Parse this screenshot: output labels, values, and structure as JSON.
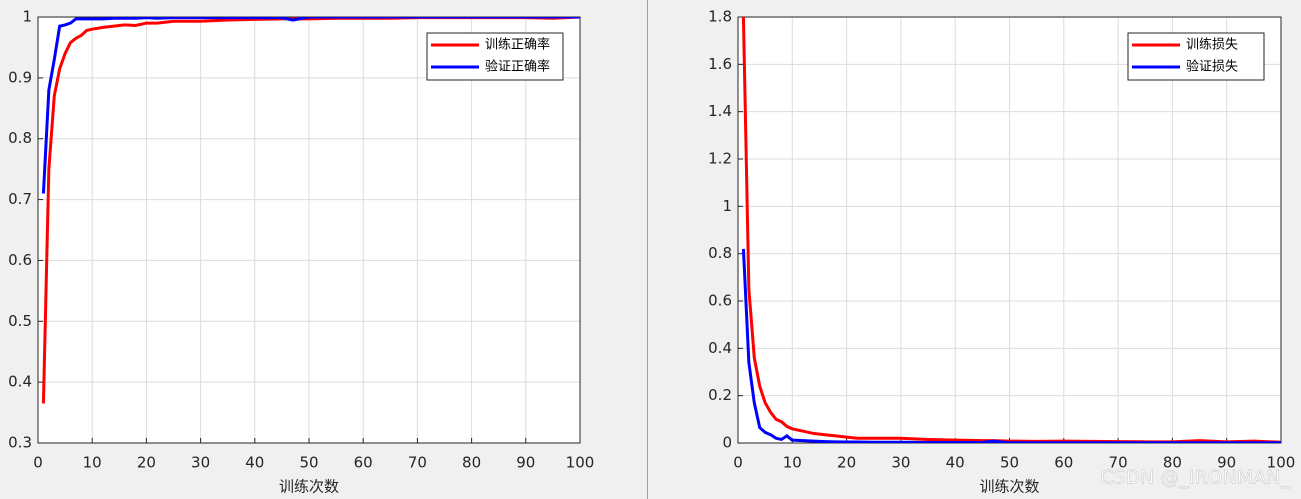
{
  "chart_data": [
    {
      "type": "line",
      "xlabel": "训练次数",
      "x": [
        1,
        2,
        3,
        4,
        5,
        6,
        7,
        8,
        9,
        10,
        12,
        14,
        16,
        18,
        20,
        22,
        25,
        30,
        35,
        40,
        45,
        47,
        50,
        55,
        60,
        65,
        70,
        75,
        80,
        85,
        90,
        95,
        100
      ],
      "series": [
        {
          "name": "训练正确率",
          "color": "#ff0000",
          "values": [
            0.365,
            0.75,
            0.87,
            0.915,
            0.94,
            0.958,
            0.965,
            0.97,
            0.978,
            0.98,
            0.983,
            0.985,
            0.987,
            0.986,
            0.99,
            0.99,
            0.993,
            0.993,
            0.995,
            0.996,
            0.997,
            0.997,
            0.997,
            0.998,
            0.998,
            0.998,
            0.999,
            0.999,
            0.999,
            0.999,
            0.999,
            0.998,
            1.0
          ]
        },
        {
          "name": "验证正确率",
          "color": "#0000ff",
          "values": [
            0.71,
            0.88,
            0.93,
            0.985,
            0.987,
            0.99,
            0.997,
            0.997,
            0.997,
            0.997,
            0.997,
            0.998,
            0.998,
            0.998,
            0.999,
            0.998,
            0.999,
            0.999,
            0.999,
            0.999,
            0.999,
            0.995,
            1,
            1,
            1,
            1,
            1,
            1,
            1,
            1,
            1,
            1,
            1
          ]
        }
      ],
      "xlim": [
        0,
        100
      ],
      "xticks": [
        0,
        10,
        20,
        30,
        40,
        50,
        60,
        70,
        80,
        90,
        100
      ],
      "ylim": [
        0.3,
        1
      ],
      "yticks": [
        0.3,
        0.4,
        0.5,
        0.6,
        0.7,
        0.8,
        0.9,
        1
      ],
      "grid": true,
      "legend": "northeast"
    },
    {
      "type": "line",
      "xlabel": "训练次数",
      "x": [
        1,
        2,
        3,
        4,
        5,
        6,
        7,
        8,
        9,
        10,
        12,
        14,
        16,
        18,
        20,
        22,
        25,
        30,
        35,
        40,
        45,
        47,
        50,
        55,
        60,
        65,
        70,
        75,
        80,
        85,
        90,
        95,
        100
      ],
      "series": [
        {
          "name": "训练损失",
          "color": "#ff0000",
          "values": [
            1.8,
            0.65,
            0.36,
            0.24,
            0.17,
            0.13,
            0.1,
            0.09,
            0.07,
            0.06,
            0.05,
            0.04,
            0.035,
            0.03,
            0.025,
            0.02,
            0.02,
            0.02,
            0.015,
            0.012,
            0.01,
            0.01,
            0.008,
            0.007,
            0.008,
            0.007,
            0.006,
            0.005,
            0.005,
            0.01,
            0.005,
            0.008,
            0.003
          ]
        },
        {
          "name": "验证损失",
          "color": "#0000ff",
          "values": [
            0.82,
            0.34,
            0.17,
            0.065,
            0.045,
            0.035,
            0.02,
            0.015,
            0.03,
            0.012,
            0.01,
            0.008,
            0.006,
            0.005,
            0.004,
            0.004,
            0.003,
            0.003,
            0.002,
            0.002,
            0.002,
            0.008,
            0.001,
            0.001,
            0.001,
            0.001,
            0.001,
            0.001,
            0.001,
            0.001,
            0.001,
            0.001,
            0.001
          ]
        }
      ],
      "xlim": [
        0,
        100
      ],
      "xticks": [
        0,
        10,
        20,
        30,
        40,
        50,
        60,
        70,
        80,
        90,
        100
      ],
      "ylim": [
        0,
        1.8
      ],
      "yticks": [
        0,
        0.2,
        0.4,
        0.6,
        0.8,
        1,
        1.2,
        1.4,
        1.6,
        1.8
      ],
      "grid": true,
      "legend": "northeast"
    }
  ],
  "watermark": "CSDN @_IRONMAN_"
}
